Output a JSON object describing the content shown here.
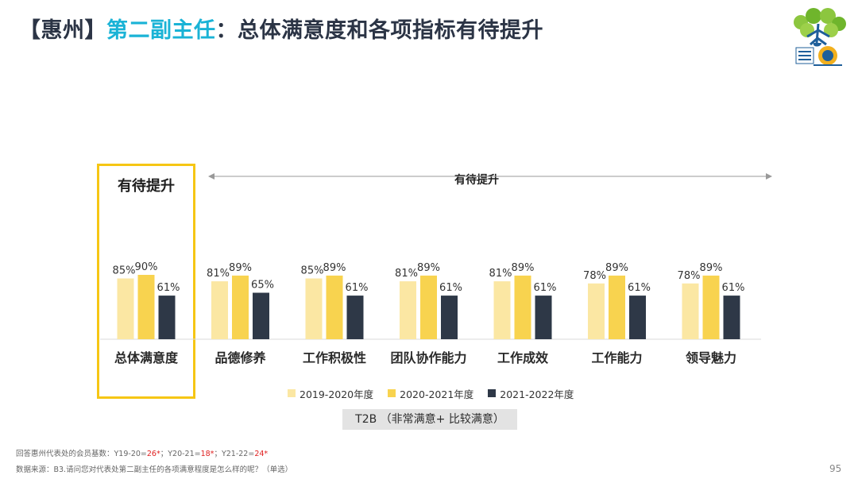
{
  "title": {
    "region": "【惠州】",
    "role": "第二副主任",
    "rest": "：总体满意度和各项指标有待提升"
  },
  "callouts": {
    "box_label": "有待提升",
    "range_label": "有待提升"
  },
  "colors": {
    "series1": "#fbe7a3",
    "series2": "#f8d34f",
    "series3": "#2e3847",
    "highlight": "#f6c614",
    "title_accent": "#1ab3d6"
  },
  "chart_data": {
    "type": "bar",
    "categories": [
      "总体满意度",
      "品德修养",
      "工作积极性",
      "团队协作能力",
      "工作成效",
      "工作能力",
      "领导魅力"
    ],
    "series": [
      {
        "name": "2019-2020年度",
        "values": [
          85,
          81,
          85,
          81,
          81,
          78,
          78
        ]
      },
      {
        "name": "2020-2021年度",
        "values": [
          90,
          89,
          89,
          89,
          89,
          89,
          89
        ]
      },
      {
        "name": "2021-2022年度",
        "values": [
          61,
          65,
          61,
          61,
          61,
          61,
          61
        ]
      }
    ],
    "value_suffix": "%",
    "ylim": [
      0,
      100
    ],
    "grid": false,
    "legend_position": "bottom"
  },
  "metric_label": "T2B （非常满意+ 比较满意）",
  "footnotes": {
    "base_prefix": "回答惠州代表处的会员基数：Y19-20=",
    "base_v1": "26*",
    "base_sep1": "；Y20-21=",
    "base_v2": "18*",
    "base_sep2": "；Y21-22=",
    "base_v3": "24*",
    "source": "数据来源：B3.请问您对代表处第二副主任的各项满意程度是怎么样的呢？（单选）"
  },
  "page_number": "95"
}
